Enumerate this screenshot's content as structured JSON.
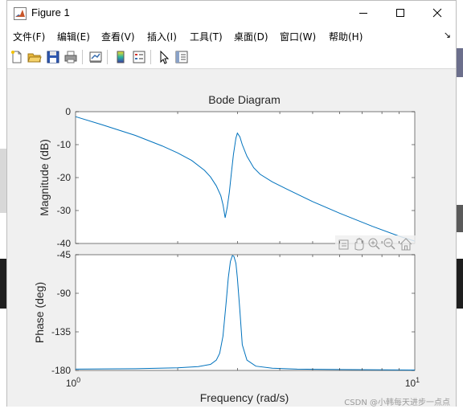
{
  "window": {
    "title": "Figure 1"
  },
  "menu": {
    "items": [
      {
        "label": "文件(F)"
      },
      {
        "label": "编辑(E)"
      },
      {
        "label": "查看(V)"
      },
      {
        "label": "插入(I)"
      },
      {
        "label": "工具(T)"
      },
      {
        "label": "桌面(D)"
      },
      {
        "label": "窗口(W)"
      },
      {
        "label": "帮助(H)"
      }
    ]
  },
  "toolbar": {
    "icons": [
      "new-figure-icon",
      "open-file-icon",
      "save-icon",
      "print-icon",
      "link-plot-icon",
      "colorbar-icon",
      "legend-icon",
      "edit-plot-icon",
      "property-inspector-icon"
    ]
  },
  "axes_toolbar": {
    "icons": [
      "export-icon",
      "pan-icon",
      "zoom-in-icon",
      "zoom-out-icon",
      "home-icon"
    ]
  },
  "chart_data": {
    "type": "line",
    "title": "Bode Diagram",
    "xlabel": "Frequency  (rad/s)",
    "xscale": "log",
    "xlim": [
      1,
      10
    ],
    "xticks": [
      {
        "value": 1,
        "label": "10^0"
      },
      {
        "value": 10,
        "label": "10^1"
      }
    ],
    "subplots": [
      {
        "ylabel": "Magnitude (dB)",
        "ylim": [
          -40,
          0
        ],
        "yticks": [
          "0",
          "-10",
          "-20",
          "-30",
          "-40"
        ],
        "series": [
          {
            "x": [
              1.0,
              1.2,
              1.5,
              1.8,
              2.0,
              2.2,
              2.4,
              2.5,
              2.6,
              2.68,
              2.72,
              2.76,
              2.8,
              2.84,
              2.88,
              2.92,
              2.97,
              3.0,
              3.05,
              3.1,
              3.2,
              3.35,
              3.5,
              3.8,
              4.2,
              5.0,
              6.0,
              7.5,
              9.0,
              10.0
            ],
            "y": [
              -1.5,
              -4.0,
              -7.2,
              -10.4,
              -12.5,
              -14.8,
              -17.8,
              -19.8,
              -22.5,
              -25.5,
              -28.2,
              -32.2,
              -29.0,
              -24.5,
              -18.5,
              -13.0,
              -8.0,
              -6.5,
              -7.6,
              -10.0,
              -13.5,
              -17.0,
              -19.0,
              -21.3,
              -23.5,
              -27.3,
              -30.8,
              -34.8,
              -37.8,
              -39.3
            ]
          }
        ]
      },
      {
        "ylabel": "Phase (deg)",
        "ylim": [
          -180,
          -45
        ],
        "yticks": [
          "-45",
          "-90",
          "-135",
          "-180"
        ],
        "series": [
          {
            "x": [
              1.0,
              1.5,
              2.0,
              2.3,
              2.5,
              2.6,
              2.66,
              2.72,
              2.78,
              2.82,
              2.86,
              2.9,
              2.93,
              2.97,
              3.0,
              3.05,
              3.1,
              3.2,
              3.4,
              3.8,
              4.5,
              6.0,
              10.0
            ],
            "y": [
              -178.5,
              -178,
              -177,
              -175.5,
              -173,
              -168,
              -160,
              -140,
              -100,
              -72,
              -53,
              -46,
              -47,
              -55,
              -72,
              -110,
              -150,
              -168,
              -175,
              -177.5,
              -178.5,
              -179,
              -179.5
            ]
          }
        ]
      }
    ],
    "grid": false
  },
  "colors": {
    "line": "#0072bd",
    "axes_bg": "#ffffff",
    "figure_bg": "#f0f0f0"
  },
  "watermark": "CSDN @小韩每天进步一点点"
}
